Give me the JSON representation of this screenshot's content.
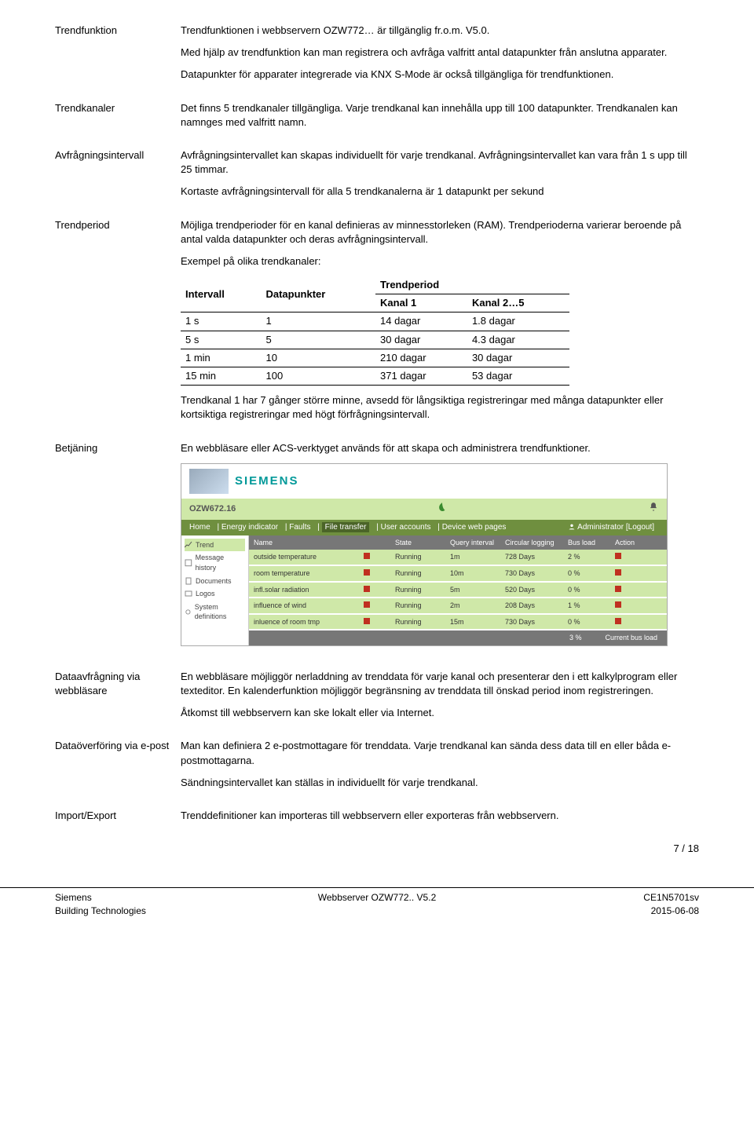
{
  "sections": {
    "trendfunktion": {
      "label": "Trendfunktion",
      "p1": "Trendfunktionen i webbservern OZW772… är tillgänglig fr.o.m. V5.0.",
      "p2": "Med hjälp av trendfunktion kan man registrera och avfråga valfritt antal datapunkter från anslutna apparater.",
      "p3": "Datapunkter för apparater integrerade via KNX S-Mode är också tillgängliga för trendfunktionen."
    },
    "trendkanaler": {
      "label": "Trendkanaler",
      "p1": "Det finns 5 trendkanaler tillgängliga. Varje trendkanal kan innehålla upp till 100 datapunkter. Trendkanalen kan namnges med valfritt namn."
    },
    "avfragning": {
      "label": "Avfrågningsintervall",
      "p1": "Avfrågningsintervallet kan skapas individuellt för varje trendkanal. Avfrågningsintervallet kan vara från 1 s upp till 25 timmar.",
      "p2": "Kortaste avfrågningsintervall för alla 5 trendkanalerna är 1 datapunkt per sekund"
    },
    "trendperiod": {
      "label": "Trendperiod",
      "p1": "Möjliga trendperioder för en kanal definieras av minnesstorleken (RAM). Trendperioderna varierar beroende på antal valda datapunkter och deras avfrågningsintervall.",
      "p2": "Exempel på olika trendkanaler:",
      "p3": "Trendkanal 1 har 7 gånger större minne, avsedd för långsiktiga registreringar med många datapunkter eller kortsiktiga registreringar med högt förfrågningsintervall."
    },
    "table": {
      "h_intervall": "Intervall",
      "h_datapunkter": "Datapunkter",
      "h_trendperiod": "Trendperiod",
      "h_kanal1": "Kanal 1",
      "h_kanal25": "Kanal 2…5",
      "rows": [
        {
          "c0": "1 s",
          "c1": "1",
          "c2": "14 dagar",
          "c3": "1.8 dagar"
        },
        {
          "c0": "5 s",
          "c1": "5",
          "c2": "30 dagar",
          "c3": "4.3 dagar"
        },
        {
          "c0": "1 min",
          "c1": "10",
          "c2": "210 dagar",
          "c3": "30 dagar"
        },
        {
          "c0": "15 min",
          "c1": "100",
          "c2": "371 dagar",
          "c3": "53 dagar"
        }
      ]
    },
    "betjaning": {
      "label": "Betjäning",
      "p1": "En webbläsare eller ACS-verktyget används för att skapa och administrera trendfunktioner."
    },
    "dataavfragning": {
      "label": "Dataavfrågning via webbläsare",
      "p1": "En webbläsare möjliggör nerladdning av trenddata för varje kanal och presenterar den i ett kalkylprogram eller texteditor. En kalenderfunktion möjliggör begränsning av trenddata till önskad period inom registreringen.",
      "p2": "Åtkomst till webbservern kan ske lokalt eller via Internet."
    },
    "dataoverforing": {
      "label": "Dataöverföring via e-post",
      "p1": "Man kan definiera 2 e-postmottagare för trenddata. Varje trendkanal kan sända dess data till en eller båda e-postmottagarna.",
      "p2": "Sändningsintervallet kan ställas in individuellt för varje trendkanal."
    },
    "importexport": {
      "label": "Import/Export",
      "p1": "Trenddefinitioner kan importeras till webbservern eller exporteras från webbservern."
    }
  },
  "shot": {
    "brand": "SIEMENS",
    "device": "OZW672.16",
    "menu": {
      "home": "Home",
      "energy": "Energy indicator",
      "faults": "Faults",
      "file": "File transfer",
      "users": "User accounts",
      "device": "Device web pages",
      "admin": "Administrator [Logout]"
    },
    "side": {
      "trend": "Trend",
      "msg": "Message history",
      "docs": "Documents",
      "logos": "Logos",
      "sys": "System definitions"
    },
    "thead": {
      "name": "Name",
      "state": "State",
      "query": "Query interval",
      "circular": "Circular logging",
      "bus": "Bus load",
      "action": "Action"
    },
    "rows": [
      {
        "name": "outside temperature",
        "state": "Running",
        "q": "1m",
        "c": "728 Days",
        "b": "2 %"
      },
      {
        "name": "room temperature",
        "state": "Running",
        "q": "10m",
        "c": "730 Days",
        "b": "0 %"
      },
      {
        "name": "infl.solar radiation",
        "state": "Running",
        "q": "5m",
        "c": "520 Days",
        "b": "0 %"
      },
      {
        "name": "influence of wind",
        "state": "Running",
        "q": "2m",
        "c": "208 Days",
        "b": "1 %"
      },
      {
        "name": "inluence of room tmp",
        "state": "Running",
        "q": "15m",
        "c": "730 Days",
        "b": "0 %"
      }
    ],
    "footer_pct": "3 %",
    "footer_label": "Current bus load"
  },
  "footer": {
    "l1": "Siemens",
    "l2": "Building Technologies",
    "c1": "Webbserver OZW772.. V5.2",
    "r0": "7 / 18",
    "r1": "CE1N5701sv",
    "r2": "2015-06-08"
  }
}
